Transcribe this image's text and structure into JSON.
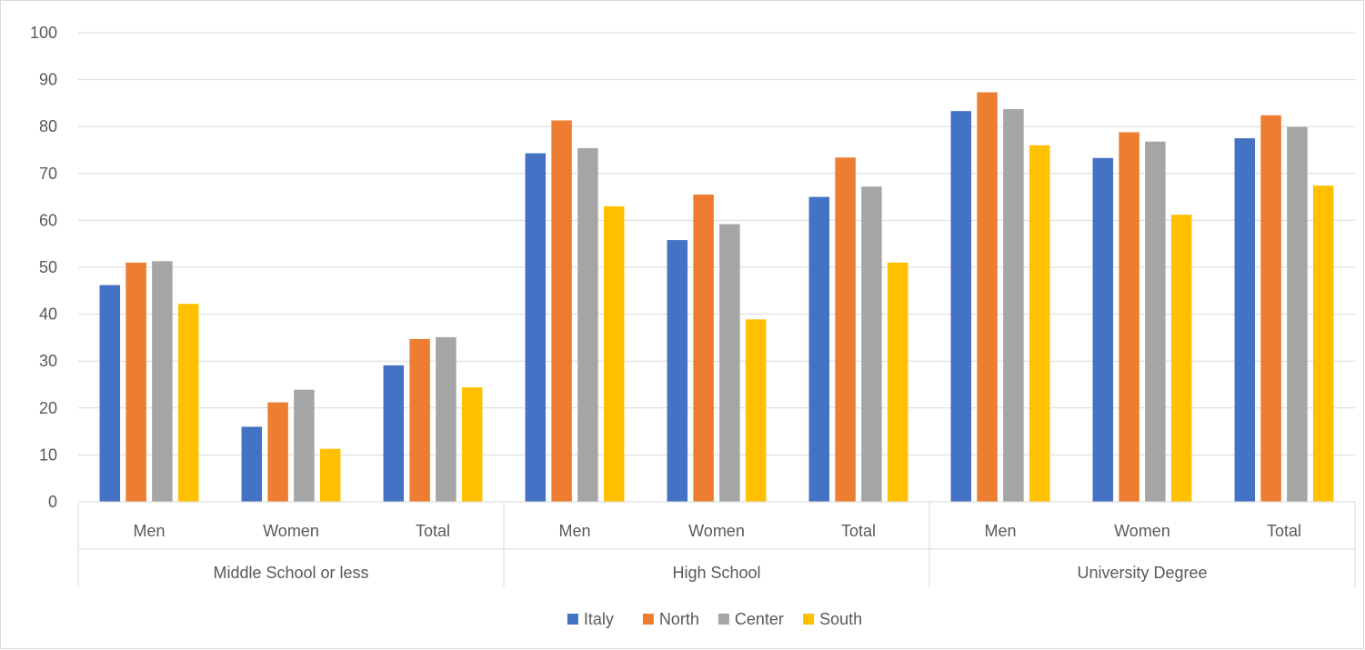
{
  "chart_data": {
    "type": "bar",
    "title": "",
    "xlabel": "",
    "ylabel": "",
    "ylim": [
      0,
      100
    ],
    "yticks": [
      0,
      10,
      20,
      30,
      40,
      50,
      60,
      70,
      80,
      90,
      100
    ],
    "grid": true,
    "legend_position": "bottom",
    "groups": [
      {
        "label": "Middle School or less",
        "categories": [
          "Men",
          "Women",
          "Total"
        ]
      },
      {
        "label": "High School",
        "categories": [
          "Men",
          "Women",
          "Total"
        ]
      },
      {
        "label": "University Degree",
        "categories": [
          "Men",
          "Women",
          "Total"
        ]
      }
    ],
    "series": [
      {
        "name": "Italy",
        "color": "#4472c4",
        "values": [
          46.2,
          16.0,
          29.1,
          74.3,
          55.8,
          65.0,
          83.3,
          73.3,
          77.5
        ]
      },
      {
        "name": "North",
        "color": "#ed7d31",
        "values": [
          51.0,
          21.2,
          34.7,
          81.3,
          65.5,
          73.4,
          87.3,
          78.8,
          82.4
        ]
      },
      {
        "name": "Center",
        "color": "#a5a5a5",
        "values": [
          51.3,
          23.9,
          35.1,
          75.4,
          59.2,
          67.2,
          83.7,
          76.8,
          79.9
        ]
      },
      {
        "name": "South",
        "color": "#ffc000",
        "values": [
          42.2,
          11.3,
          24.4,
          63.0,
          38.9,
          51.0,
          76.0,
          61.2,
          67.4
        ]
      }
    ]
  }
}
